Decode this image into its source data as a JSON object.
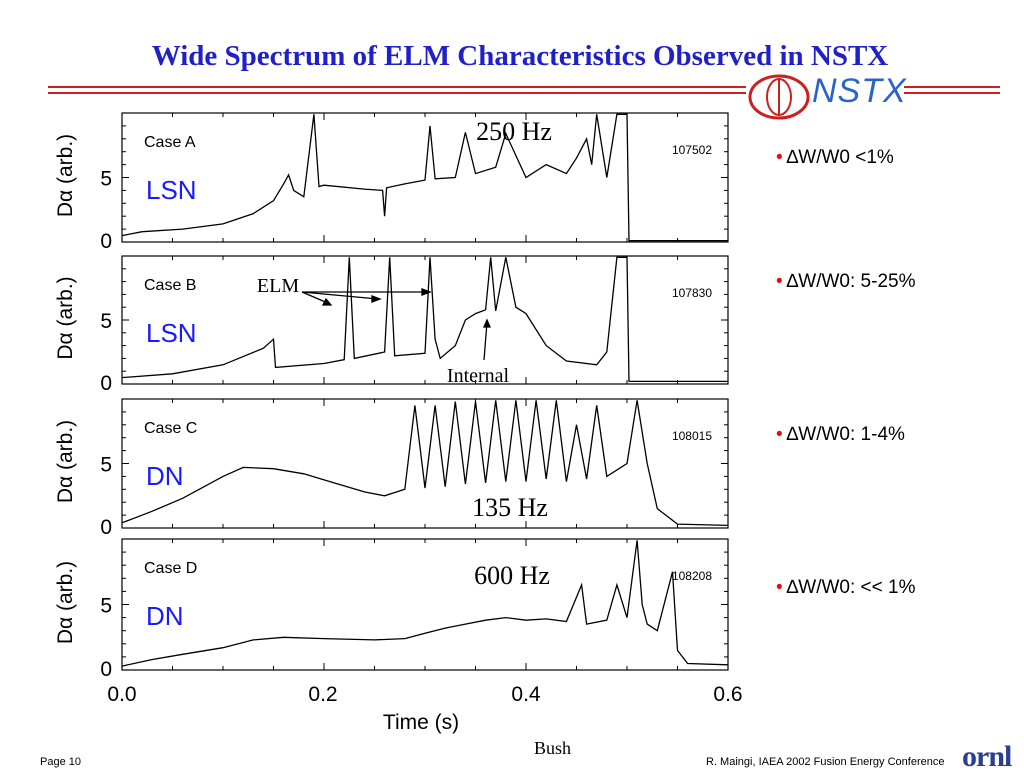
{
  "title": "Wide Spectrum of ELM Characteristics Observed in NSTX",
  "logo_text": "NSTX",
  "colors": {
    "title": "#2020c8",
    "rule": "#cc1f1f",
    "config_label": "#1a1aff",
    "bullet_dot": "#e01010",
    "logo": "#2b63c8"
  },
  "chart_data": {
    "type": "line",
    "shared_x": {
      "label": "Time (s)",
      "ticks": [
        "0.0",
        "0.2",
        "0.4",
        "0.6"
      ],
      "range": [
        0.0,
        0.6
      ]
    },
    "panels": [
      {
        "case": "Case A",
        "config": "LSN",
        "shot": "107502",
        "ylabel": "Dα (arb.)",
        "yticks": [
          "5",
          "0"
        ],
        "ylim": [
          0,
          10
        ],
        "annotation": "250 Hz",
        "bullet": "∆W/W0 <1%",
        "points": [
          [
            0.0,
            0.5
          ],
          [
            0.02,
            0.8
          ],
          [
            0.06,
            1.0
          ],
          [
            0.1,
            1.4
          ],
          [
            0.13,
            2.2
          ],
          [
            0.15,
            3.2
          ],
          [
            0.16,
            4.5
          ],
          [
            0.165,
            5.2
          ],
          [
            0.17,
            4.0
          ],
          [
            0.18,
            3.5
          ],
          [
            0.19,
            9.9
          ],
          [
            0.195,
            4.3
          ],
          [
            0.2,
            4.4
          ],
          [
            0.24,
            4.1
          ],
          [
            0.258,
            4.0
          ],
          [
            0.26,
            2.0
          ],
          [
            0.262,
            4.2
          ],
          [
            0.28,
            4.5
          ],
          [
            0.3,
            4.8
          ],
          [
            0.305,
            9.0
          ],
          [
            0.31,
            4.9
          ],
          [
            0.33,
            5.0
          ],
          [
            0.34,
            8.5
          ],
          [
            0.35,
            5.3
          ],
          [
            0.37,
            5.8
          ],
          [
            0.38,
            8.4
          ],
          [
            0.4,
            5.0
          ],
          [
            0.42,
            6.0
          ],
          [
            0.44,
            5.3
          ],
          [
            0.45,
            6.5
          ],
          [
            0.46,
            8.0
          ],
          [
            0.465,
            6.0
          ],
          [
            0.47,
            9.9
          ],
          [
            0.48,
            5.0
          ],
          [
            0.49,
            9.9
          ],
          [
            0.5,
            9.9
          ],
          [
            0.502,
            0.1
          ],
          [
            0.6,
            0.1
          ]
        ]
      },
      {
        "case": "Case B",
        "config": "LSN",
        "shot": "107830",
        "ylabel": "Dα (arb.)",
        "yticks": [
          "5",
          "0"
        ],
        "ylim": [
          0,
          10
        ],
        "annotations": [
          "ELM",
          "Internal"
        ],
        "bullet": "∆W/W0: 5-25%",
        "points": [
          [
            0.0,
            0.5
          ],
          [
            0.05,
            0.8
          ],
          [
            0.1,
            1.5
          ],
          [
            0.14,
            2.8
          ],
          [
            0.15,
            3.5
          ],
          [
            0.152,
            1.3
          ],
          [
            0.2,
            1.6
          ],
          [
            0.22,
            1.9
          ],
          [
            0.225,
            9.9
          ],
          [
            0.23,
            2.0
          ],
          [
            0.26,
            2.5
          ],
          [
            0.265,
            9.9
          ],
          [
            0.27,
            2.2
          ],
          [
            0.3,
            2.4
          ],
          [
            0.305,
            9.9
          ],
          [
            0.31,
            3.5
          ],
          [
            0.315,
            2.0
          ],
          [
            0.33,
            3.0
          ],
          [
            0.34,
            5.0
          ],
          [
            0.35,
            5.5
          ],
          [
            0.36,
            5.8
          ],
          [
            0.365,
            9.9
          ],
          [
            0.37,
            5.7
          ],
          [
            0.38,
            9.9
          ],
          [
            0.39,
            6.0
          ],
          [
            0.4,
            5.5
          ],
          [
            0.42,
            3.0
          ],
          [
            0.44,
            1.8
          ],
          [
            0.47,
            1.5
          ],
          [
            0.48,
            2.5
          ],
          [
            0.49,
            9.9
          ],
          [
            0.5,
            9.9
          ],
          [
            0.502,
            0.2
          ],
          [
            0.6,
            0.2
          ]
        ]
      },
      {
        "case": "Case C",
        "config": "DN",
        "shot": "108015",
        "ylabel": "Dα (arb.)",
        "yticks": [
          "5",
          "0"
        ],
        "ylim": [
          0,
          10
        ],
        "annotation": "135 Hz",
        "bullet": "∆W/W0: 1-4%",
        "points": [
          [
            0.0,
            0.4
          ],
          [
            0.03,
            1.3
          ],
          [
            0.06,
            2.3
          ],
          [
            0.1,
            4.0
          ],
          [
            0.12,
            4.7
          ],
          [
            0.15,
            4.6
          ],
          [
            0.18,
            4.2
          ],
          [
            0.21,
            3.5
          ],
          [
            0.24,
            2.8
          ],
          [
            0.26,
            2.5
          ],
          [
            0.28,
            3.0
          ],
          [
            0.29,
            9.5
          ],
          [
            0.3,
            3.1
          ],
          [
            0.31,
            9.5
          ],
          [
            0.32,
            3.2
          ],
          [
            0.33,
            9.8
          ],
          [
            0.34,
            3.4
          ],
          [
            0.35,
            9.8
          ],
          [
            0.36,
            3.5
          ],
          [
            0.37,
            9.9
          ],
          [
            0.38,
            3.6
          ],
          [
            0.39,
            9.9
          ],
          [
            0.4,
            3.6
          ],
          [
            0.41,
            9.9
          ],
          [
            0.42,
            3.8
          ],
          [
            0.43,
            9.9
          ],
          [
            0.44,
            3.6
          ],
          [
            0.45,
            8.0
          ],
          [
            0.46,
            3.8
          ],
          [
            0.47,
            9.5
          ],
          [
            0.48,
            4.0
          ],
          [
            0.5,
            5.0
          ],
          [
            0.51,
            9.9
          ],
          [
            0.52,
            5.0
          ],
          [
            0.53,
            1.5
          ],
          [
            0.55,
            0.3
          ],
          [
            0.6,
            0.2
          ]
        ]
      },
      {
        "case": "Case D",
        "config": "DN",
        "shot": "108208",
        "ylabel": "Dα (arb.)",
        "yticks": [
          "5",
          "0"
        ],
        "ylim": [
          0,
          10
        ],
        "annotation": "600 Hz",
        "bullet": "∆W/W0: << 1%",
        "points": [
          [
            0.0,
            0.3
          ],
          [
            0.03,
            0.8
          ],
          [
            0.06,
            1.2
          ],
          [
            0.1,
            1.7
          ],
          [
            0.13,
            2.3
          ],
          [
            0.16,
            2.5
          ],
          [
            0.2,
            2.4
          ],
          [
            0.25,
            2.3
          ],
          [
            0.28,
            2.4
          ],
          [
            0.3,
            2.8
          ],
          [
            0.32,
            3.2
          ],
          [
            0.34,
            3.5
          ],
          [
            0.36,
            3.8
          ],
          [
            0.38,
            4.0
          ],
          [
            0.4,
            3.8
          ],
          [
            0.42,
            3.9
          ],
          [
            0.44,
            3.7
          ],
          [
            0.455,
            6.5
          ],
          [
            0.46,
            3.5
          ],
          [
            0.48,
            3.8
          ],
          [
            0.49,
            6.5
          ],
          [
            0.5,
            4.0
          ],
          [
            0.51,
            9.9
          ],
          [
            0.515,
            5.0
          ],
          [
            0.52,
            3.5
          ],
          [
            0.53,
            3.0
          ],
          [
            0.545,
            7.5
          ],
          [
            0.55,
            1.5
          ],
          [
            0.56,
            0.5
          ],
          [
            0.6,
            0.4
          ]
        ]
      }
    ]
  },
  "footer": {
    "page": "Page 10",
    "author": "Bush",
    "credit": "R. Maingi, IAEA 2002 Fusion Energy Conference",
    "org_logo": "ornl"
  }
}
